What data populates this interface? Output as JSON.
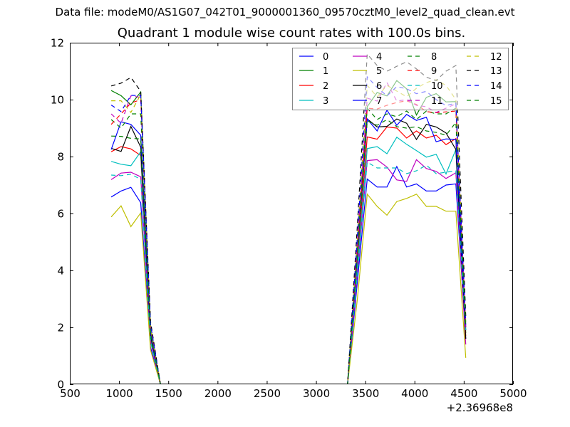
{
  "chart_data": {
    "type": "line",
    "suptitle": "Data file: modeM0/AS1G07_042T01_9000001360_09570cztM0_level2_quad_clean.evt",
    "title": "Quadrant 1 module wise count rates with 100.0s bins.",
    "xlabel": "",
    "ylabel": "",
    "x_offset_text": "+2.36968e8",
    "xlim": [
      500,
      5000
    ],
    "ylim": [
      0,
      12
    ],
    "xticks": [
      500,
      1000,
      1500,
      2000,
      2500,
      3000,
      3500,
      4000,
      4500,
      5000
    ],
    "yticks": [
      0,
      2,
      4,
      6,
      8,
      10,
      12
    ],
    "grid": false,
    "legend_placement": "top-right",
    "legend_columns": 4,
    "x": [
      920,
      1020,
      1120,
      1220,
      1320,
      1420,
      1520,
      1620,
      1720,
      1820,
      1920,
      2020,
      2120,
      2220,
      2320,
      2420,
      2520,
      2620,
      2720,
      2820,
      2920,
      3020,
      3120,
      3220,
      3320,
      3420,
      3520,
      3620,
      3720,
      3820,
      3920,
      4020,
      4120,
      4220,
      4320,
      4420,
      4520
    ],
    "series": [
      {
        "name": "0",
        "color": "#0000ff",
        "style": "solid",
        "values": [
          6.58,
          6.79,
          6.92,
          6.38,
          1.3,
          0,
          0,
          0,
          0,
          0,
          0,
          0,
          0,
          0,
          0,
          0,
          0,
          0,
          0,
          0,
          0,
          0,
          0,
          0,
          0,
          3.6,
          7.21,
          6.93,
          6.93,
          7.65,
          6.93,
          7.04,
          6.79,
          6.79,
          7.0,
          7.04,
          1.6
        ]
      },
      {
        "name": "1",
        "color": "#008000",
        "style": "solid",
        "values": [
          10.32,
          10.14,
          9.82,
          10.27,
          2.0,
          0,
          0,
          0,
          0,
          0,
          0,
          0,
          0,
          0,
          0,
          0,
          0,
          0,
          0,
          0,
          0,
          0,
          0,
          0,
          0,
          4.9,
          9.75,
          10.25,
          10.13,
          10.67,
          10.38,
          9.46,
          10.08,
          10.21,
          9.92,
          9.93,
          1.8
        ]
      },
      {
        "name": "2",
        "color": "#ff0000",
        "style": "solid",
        "values": [
          8.17,
          8.35,
          8.27,
          8.04,
          1.6,
          0,
          0,
          0,
          0,
          0,
          0,
          0,
          0,
          0,
          0,
          0,
          0,
          0,
          0,
          0,
          0,
          0,
          0,
          0,
          0,
          4.3,
          8.69,
          8.61,
          9.04,
          9.0,
          8.65,
          8.9,
          8.65,
          8.75,
          8.42,
          8.63,
          1.7
        ]
      },
      {
        "name": "3",
        "color": "#00bfbf",
        "style": "solid",
        "values": [
          7.83,
          7.73,
          7.68,
          8.17,
          1.6,
          0,
          0,
          0,
          0,
          0,
          0,
          0,
          0,
          0,
          0,
          0,
          0,
          0,
          0,
          0,
          0,
          0,
          0,
          0,
          0,
          4.1,
          8.28,
          8.35,
          8.1,
          8.68,
          8.43,
          8.21,
          7.98,
          8.08,
          7.39,
          8.25,
          2.2
        ]
      },
      {
        "name": "4",
        "color": "#bf00bf",
        "style": "solid",
        "values": [
          7.19,
          7.42,
          7.45,
          7.29,
          1.5,
          0,
          0,
          0,
          0,
          0,
          0,
          0,
          0,
          0,
          0,
          0,
          0,
          0,
          0,
          0,
          0,
          0,
          0,
          0,
          0,
          3.9,
          7.86,
          7.89,
          7.63,
          7.18,
          7.13,
          7.89,
          7.58,
          7.48,
          7.23,
          7.43,
          1.4
        ]
      },
      {
        "name": "5",
        "color": "#bfbf00",
        "style": "solid",
        "values": [
          5.88,
          6.27,
          5.54,
          6.02,
          1.2,
          0,
          0,
          0,
          0,
          0,
          0,
          0,
          0,
          0,
          0,
          0,
          0,
          0,
          0,
          0,
          0,
          0,
          0,
          0,
          0,
          3.0,
          6.68,
          6.25,
          5.94,
          6.42,
          6.53,
          6.68,
          6.25,
          6.25,
          6.08,
          6.08,
          0.93
        ]
      },
      {
        "name": "6",
        "color": "#000000",
        "style": "solid",
        "values": [
          8.29,
          8.18,
          9.06,
          8.33,
          1.7,
          0,
          0,
          0,
          0,
          0,
          0,
          0,
          0,
          0,
          0,
          0,
          0,
          0,
          0,
          0,
          0,
          0,
          0,
          0,
          0,
          4.6,
          9.32,
          9.04,
          9.06,
          9.32,
          9.17,
          8.6,
          9.13,
          9.04,
          8.83,
          8.25,
          1.6
        ]
      },
      {
        "name": "7",
        "color": "#0000ff",
        "style": "solid",
        "values": [
          8.25,
          9.22,
          9.13,
          8.75,
          1.8,
          0,
          0,
          0,
          0,
          0,
          0,
          0,
          0,
          0,
          0,
          0,
          0,
          0,
          0,
          0,
          0,
          0,
          0,
          0,
          0,
          4.6,
          9.32,
          8.9,
          9.63,
          9.1,
          9.48,
          9.27,
          9.38,
          8.52,
          8.62,
          8.6,
          1.9
        ]
      },
      {
        "name": "8",
        "color": "#008000",
        "style": "dashed",
        "values": [
          9.3,
          9.0,
          9.5,
          9.5,
          1.9,
          0,
          0,
          0,
          0,
          0,
          0,
          0,
          0,
          0,
          0,
          0,
          0,
          0,
          0,
          0,
          0,
          0,
          0,
          0,
          0,
          4.8,
          9.7,
          9.3,
          9.5,
          9.4,
          9.6,
          9.3,
          9.6,
          9.5,
          9.5,
          9.7,
          2.0
        ]
      },
      {
        "name": "9",
        "color": "#ff0000",
        "style": "dashed",
        "values": [
          9.13,
          9.5,
          9.88,
          10.0,
          2.0,
          0,
          0,
          0,
          0,
          0,
          0,
          0,
          0,
          0,
          0,
          0,
          0,
          0,
          0,
          0,
          0,
          0,
          0,
          0,
          0,
          4.8,
          9.7,
          9.67,
          9.8,
          9.9,
          9.96,
          9.83,
          9.58,
          9.54,
          9.57,
          9.6,
          2.1
        ]
      },
      {
        "name": "10",
        "color": "#00bfbf",
        "style": "dashed",
        "values": [
          7.35,
          7.33,
          7.38,
          7.2,
          1.5,
          0,
          0,
          0,
          0,
          0,
          0,
          0,
          0,
          0,
          0,
          0,
          0,
          0,
          0,
          0,
          0,
          0,
          0,
          0,
          0,
          3.9,
          7.8,
          7.6,
          7.6,
          7.6,
          7.4,
          7.5,
          7.7,
          7.4,
          7.45,
          7.5,
          1.9
        ]
      },
      {
        "name": "11",
        "color": "#bf00bf",
        "style": "dashed",
        "values": [
          9.5,
          9.17,
          10.13,
          10.08,
          2.0,
          0,
          0,
          0,
          0,
          0,
          0,
          0,
          0,
          0,
          0,
          0,
          0,
          0,
          0,
          0,
          0,
          0,
          0,
          0,
          0,
          5.0,
          10.05,
          9.95,
          10.6,
          9.95,
          10.0,
          9.8,
          9.75,
          9.55,
          9.7,
          9.85,
          2.0
        ]
      },
      {
        "name": "12",
        "color": "#bfbf00",
        "style": "dashed",
        "values": [
          9.96,
          9.96,
          9.55,
          10.18,
          2.0,
          0,
          0,
          0,
          0,
          0,
          0,
          0,
          0,
          0,
          0,
          0,
          0,
          0,
          0,
          0,
          0,
          0,
          0,
          0,
          0,
          5.1,
          10.5,
          10.1,
          10.5,
          10.3,
          10.1,
          10.4,
          10.6,
          10.7,
          10.5,
          10.0,
          2.2
        ]
      },
      {
        "name": "13",
        "color": "#000000",
        "style": "dashed",
        "values": [
          10.48,
          10.58,
          10.78,
          10.29,
          2.2,
          0,
          0,
          0,
          0,
          0,
          0,
          0,
          0,
          0,
          0,
          0,
          0,
          0,
          0,
          0,
          0,
          0,
          0,
          0,
          0,
          5.6,
          11.6,
          11.2,
          11.0,
          11.17,
          11.33,
          11.08,
          10.79,
          10.67,
          11.0,
          11.2,
          2.4
        ]
      },
      {
        "name": "14",
        "color": "#0000ff",
        "style": "dashed",
        "values": [
          9.81,
          9.58,
          10.15,
          10.14,
          2.1,
          0,
          0,
          0,
          0,
          0,
          0,
          0,
          0,
          0,
          0,
          0,
          0,
          0,
          0,
          0,
          0,
          0,
          0,
          0,
          0,
          5.2,
          10.8,
          10.43,
          10.13,
          10.46,
          10.38,
          10.21,
          10.29,
          10.0,
          9.79,
          9.88,
          2.1
        ]
      },
      {
        "name": "15",
        "color": "#008000",
        "style": "dashed",
        "values": [
          8.72,
          8.71,
          8.64,
          8.62,
          1.8,
          0,
          0,
          0,
          0,
          0,
          0,
          0,
          0,
          0,
          0,
          0,
          0,
          0,
          0,
          0,
          0,
          0,
          0,
          0,
          0,
          4.5,
          9.25,
          9.1,
          9.3,
          9.05,
          9.0,
          9.05,
          8.9,
          8.85,
          8.75,
          9.2,
          2.0
        ]
      }
    ]
  }
}
